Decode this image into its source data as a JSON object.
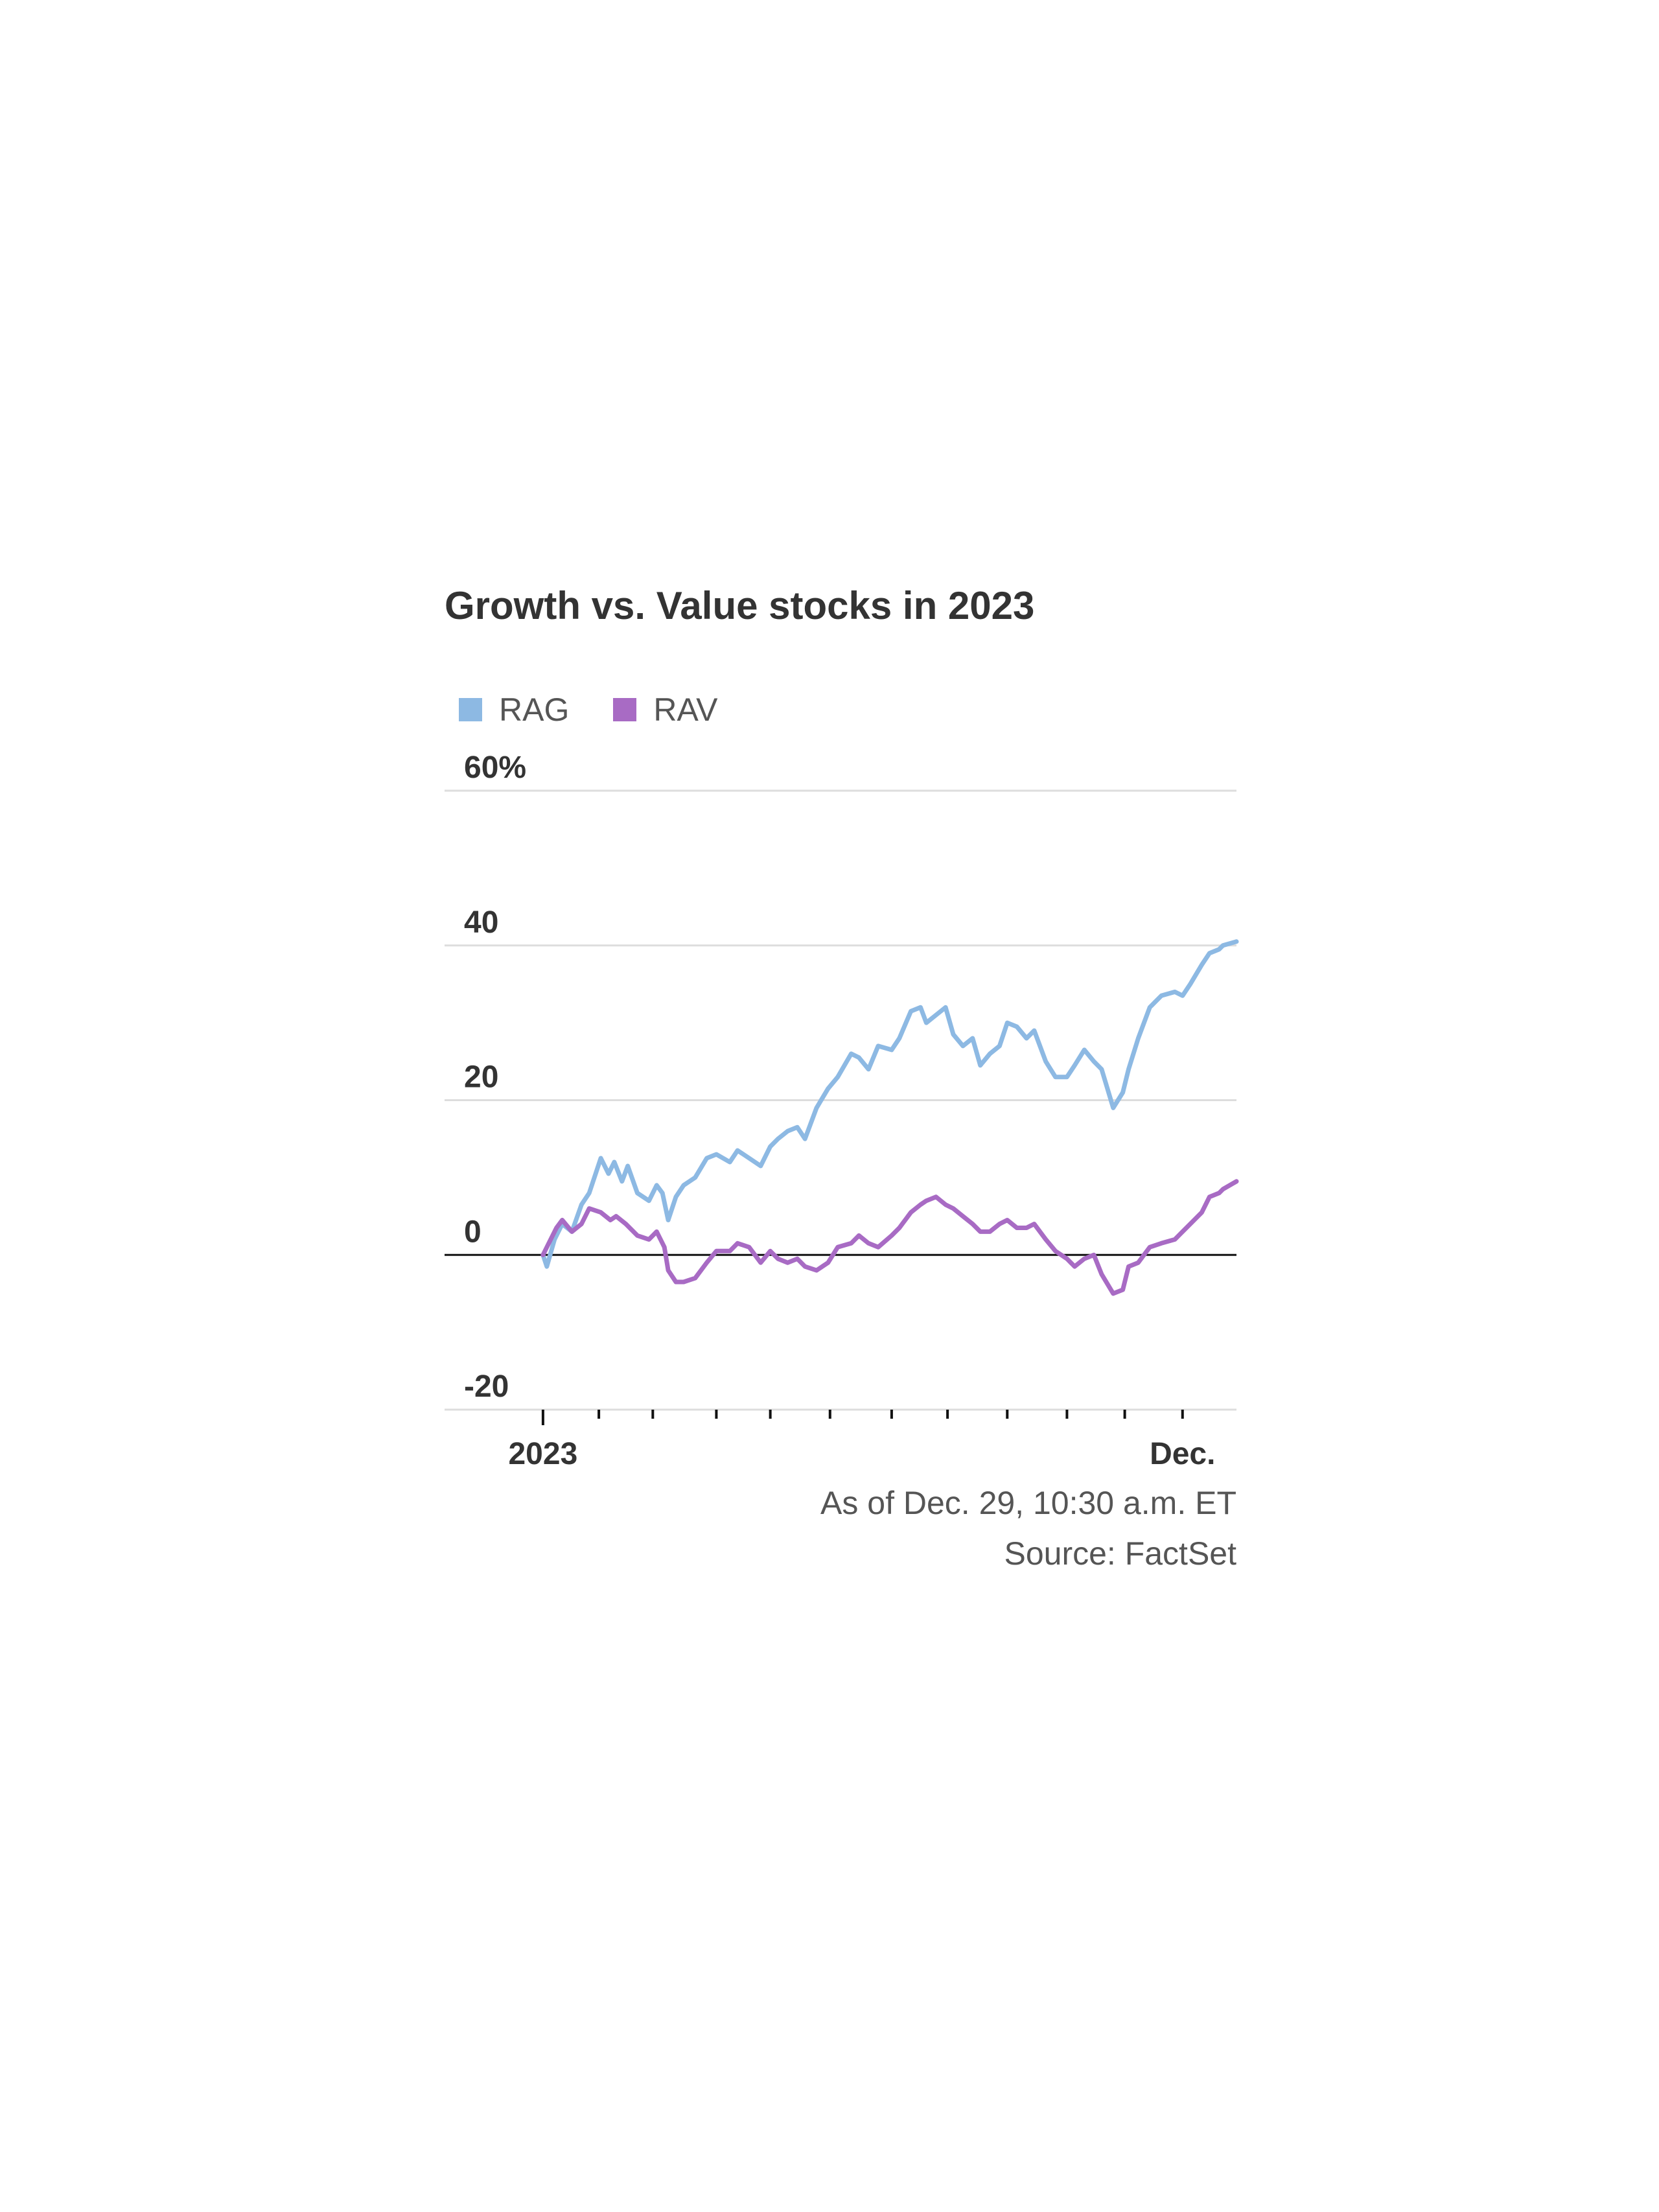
{
  "chart_data": {
    "type": "line",
    "title": "Growth vs. Value stocks in 2023",
    "ylabel": "",
    "xlabel": "",
    "y_unit": "%",
    "ylim": [
      -20,
      60
    ],
    "y_ticks": [
      {
        "value": 60,
        "label": "60%"
      },
      {
        "value": 40,
        "label": "40"
      },
      {
        "value": 20,
        "label": "20"
      },
      {
        "value": 0,
        "label": "0"
      },
      {
        "value": -20,
        "label": "-20"
      }
    ],
    "xlim": [
      "2022-12-30",
      "2023-12-29"
    ],
    "x_tick_marks": [
      "2023-01-03",
      "2023-02-01",
      "2023-03-01",
      "2023-04-03",
      "2023-05-01",
      "2023-06-01",
      "2023-07-03",
      "2023-08-01",
      "2023-09-01",
      "2023-10-02",
      "2023-11-01",
      "2023-12-01"
    ],
    "x_tick_labels": [
      {
        "date": "2023-01-03",
        "label": "2023"
      },
      {
        "date": "2023-12-01",
        "label": "Dec."
      }
    ],
    "grid": true,
    "zero_line": true,
    "legend": "top-left",
    "series": [
      {
        "name": "RAG",
        "color": "#8db9e3",
        "points": [
          [
            "2023-01-03",
            0.0
          ],
          [
            "2023-01-05",
            -1.5
          ],
          [
            "2023-01-09",
            2.0
          ],
          [
            "2023-01-13",
            4.0
          ],
          [
            "2023-01-18",
            3.0
          ],
          [
            "2023-01-23",
            6.5
          ],
          [
            "2023-01-27",
            8.0
          ],
          [
            "2023-02-02",
            12.5
          ],
          [
            "2023-02-06",
            10.5
          ],
          [
            "2023-02-09",
            12.0
          ],
          [
            "2023-02-13",
            9.5
          ],
          [
            "2023-02-16",
            11.5
          ],
          [
            "2023-02-21",
            8.0
          ],
          [
            "2023-02-27",
            7.0
          ],
          [
            "2023-03-03",
            9.0
          ],
          [
            "2023-03-06",
            8.0
          ],
          [
            "2023-03-09",
            4.5
          ],
          [
            "2023-03-13",
            7.5
          ],
          [
            "2023-03-17",
            9.0
          ],
          [
            "2023-03-23",
            10.0
          ],
          [
            "2023-03-29",
            12.5
          ],
          [
            "2023-04-03",
            13.0
          ],
          [
            "2023-04-10",
            12.0
          ],
          [
            "2023-04-14",
            13.5
          ],
          [
            "2023-04-20",
            12.5
          ],
          [
            "2023-04-26",
            11.5
          ],
          [
            "2023-05-01",
            14.0
          ],
          [
            "2023-05-05",
            15.0
          ],
          [
            "2023-05-10",
            16.0
          ],
          [
            "2023-05-15",
            16.5
          ],
          [
            "2023-05-19",
            15.0
          ],
          [
            "2023-05-25",
            19.0
          ],
          [
            "2023-05-31",
            21.5
          ],
          [
            "2023-06-05",
            23.0
          ],
          [
            "2023-06-12",
            26.0
          ],
          [
            "2023-06-16",
            25.5
          ],
          [
            "2023-06-21",
            24.0
          ],
          [
            "2023-06-26",
            27.0
          ],
          [
            "2023-07-03",
            26.5
          ],
          [
            "2023-07-07",
            28.0
          ],
          [
            "2023-07-13",
            31.5
          ],
          [
            "2023-07-18",
            32.0
          ],
          [
            "2023-07-21",
            30.0
          ],
          [
            "2023-07-26",
            31.0
          ],
          [
            "2023-07-31",
            32.0
          ],
          [
            "2023-08-04",
            28.5
          ],
          [
            "2023-08-09",
            27.0
          ],
          [
            "2023-08-14",
            28.0
          ],
          [
            "2023-08-18",
            24.5
          ],
          [
            "2023-08-23",
            26.0
          ],
          [
            "2023-08-28",
            27.0
          ],
          [
            "2023-09-01",
            30.0
          ],
          [
            "2023-09-06",
            29.5
          ],
          [
            "2023-09-11",
            28.0
          ],
          [
            "2023-09-15",
            29.0
          ],
          [
            "2023-09-21",
            25.0
          ],
          [
            "2023-09-26",
            23.0
          ],
          [
            "2023-10-02",
            23.0
          ],
          [
            "2023-10-06",
            24.5
          ],
          [
            "2023-10-11",
            26.5
          ],
          [
            "2023-10-16",
            25.0
          ],
          [
            "2023-10-20",
            24.0
          ],
          [
            "2023-10-26",
            19.0
          ],
          [
            "2023-10-31",
            21.0
          ],
          [
            "2023-11-03",
            24.0
          ],
          [
            "2023-11-08",
            28.0
          ],
          [
            "2023-11-14",
            32.0
          ],
          [
            "2023-11-20",
            33.5
          ],
          [
            "2023-11-27",
            34.0
          ],
          [
            "2023-12-01",
            33.5
          ],
          [
            "2023-12-05",
            35.0
          ],
          [
            "2023-12-11",
            37.5
          ],
          [
            "2023-12-15",
            39.0
          ],
          [
            "2023-12-20",
            39.5
          ],
          [
            "2023-12-22",
            40.0
          ],
          [
            "2023-12-29",
            40.5
          ]
        ]
      },
      {
        "name": "RAV",
        "color": "#a86bc4",
        "points": [
          [
            "2023-01-03",
            0.0
          ],
          [
            "2023-01-06",
            1.5
          ],
          [
            "2023-01-10",
            3.5
          ],
          [
            "2023-01-13",
            4.5
          ],
          [
            "2023-01-18",
            3.0
          ],
          [
            "2023-01-23",
            4.0
          ],
          [
            "2023-01-27",
            6.0
          ],
          [
            "2023-02-02",
            5.5
          ],
          [
            "2023-02-07",
            4.5
          ],
          [
            "2023-02-10",
            5.0
          ],
          [
            "2023-02-15",
            4.0
          ],
          [
            "2023-02-21",
            2.5
          ],
          [
            "2023-02-27",
            2.0
          ],
          [
            "2023-03-03",
            3.0
          ],
          [
            "2023-03-07",
            1.0
          ],
          [
            "2023-03-09",
            -2.0
          ],
          [
            "2023-03-13",
            -3.5
          ],
          [
            "2023-03-17",
            -3.5
          ],
          [
            "2023-03-23",
            -3.0
          ],
          [
            "2023-03-29",
            -1.0
          ],
          [
            "2023-04-03",
            0.5
          ],
          [
            "2023-04-10",
            0.5
          ],
          [
            "2023-04-14",
            1.5
          ],
          [
            "2023-04-20",
            1.0
          ],
          [
            "2023-04-26",
            -1.0
          ],
          [
            "2023-05-01",
            0.5
          ],
          [
            "2023-05-05",
            -0.5
          ],
          [
            "2023-05-10",
            -1.0
          ],
          [
            "2023-05-15",
            -0.5
          ],
          [
            "2023-05-19",
            -1.5
          ],
          [
            "2023-05-25",
            -2.0
          ],
          [
            "2023-05-31",
            -1.0
          ],
          [
            "2023-06-05",
            1.0
          ],
          [
            "2023-06-12",
            1.5
          ],
          [
            "2023-06-16",
            2.5
          ],
          [
            "2023-06-21",
            1.5
          ],
          [
            "2023-06-26",
            1.0
          ],
          [
            "2023-07-03",
            2.5
          ],
          [
            "2023-07-07",
            3.5
          ],
          [
            "2023-07-13",
            5.5
          ],
          [
            "2023-07-18",
            6.5
          ],
          [
            "2023-07-21",
            7.0
          ],
          [
            "2023-07-26",
            7.5
          ],
          [
            "2023-07-31",
            6.5
          ],
          [
            "2023-08-04",
            6.0
          ],
          [
            "2023-08-09",
            5.0
          ],
          [
            "2023-08-14",
            4.0
          ],
          [
            "2023-08-18",
            3.0
          ],
          [
            "2023-08-23",
            3.0
          ],
          [
            "2023-08-28",
            4.0
          ],
          [
            "2023-09-01",
            4.5
          ],
          [
            "2023-09-06",
            3.5
          ],
          [
            "2023-09-11",
            3.5
          ],
          [
            "2023-09-15",
            4.0
          ],
          [
            "2023-09-21",
            2.0
          ],
          [
            "2023-09-26",
            0.5
          ],
          [
            "2023-10-02",
            -0.5
          ],
          [
            "2023-10-06",
            -1.5
          ],
          [
            "2023-10-11",
            -0.5
          ],
          [
            "2023-10-16",
            0.0
          ],
          [
            "2023-10-20",
            -2.5
          ],
          [
            "2023-10-26",
            -5.0
          ],
          [
            "2023-10-31",
            -4.5
          ],
          [
            "2023-11-03",
            -1.5
          ],
          [
            "2023-11-08",
            -1.0
          ],
          [
            "2023-11-14",
            1.0
          ],
          [
            "2023-11-20",
            1.5
          ],
          [
            "2023-11-27",
            2.0
          ],
          [
            "2023-12-01",
            3.0
          ],
          [
            "2023-12-05",
            4.0
          ],
          [
            "2023-12-11",
            5.5
          ],
          [
            "2023-12-15",
            7.5
          ],
          [
            "2023-12-20",
            8.0
          ],
          [
            "2023-12-22",
            8.5
          ],
          [
            "2023-12-29",
            9.5
          ]
        ]
      }
    ]
  },
  "notes": {
    "as_of": "As of Dec. 29, 10:30 a.m. ET",
    "source": "Source: FactSet"
  }
}
